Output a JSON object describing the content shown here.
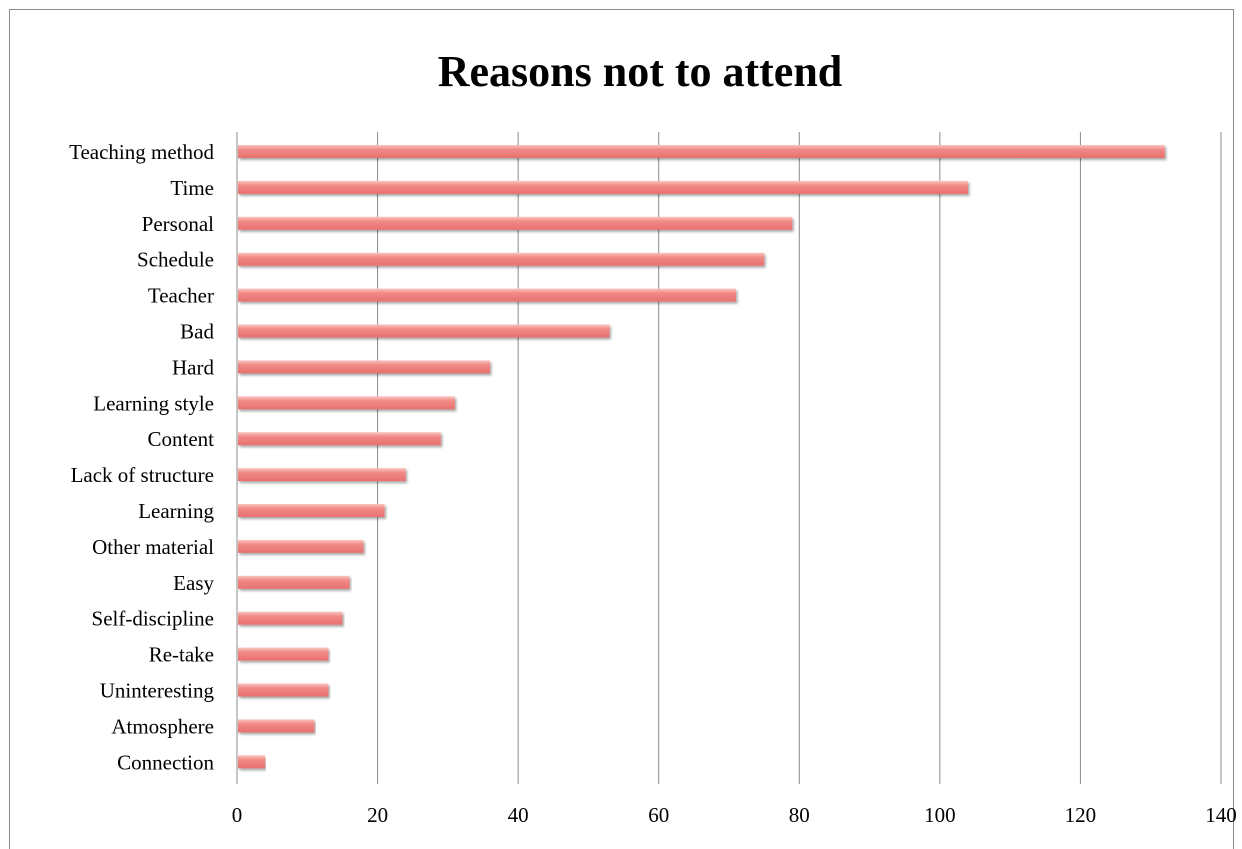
{
  "chart_data": {
    "type": "bar",
    "orientation": "horizontal",
    "title": "Reasons not to attend",
    "xlabel": "",
    "ylabel": "",
    "categories": [
      "Teaching method",
      "Time",
      "Personal",
      "Schedule",
      "Teacher",
      "Bad",
      "Hard",
      "Learning style",
      "Content",
      "Lack of structure",
      "Learning",
      "Other material",
      "Easy",
      "Self-discipline",
      "Re-take",
      "Uninteresting",
      "Atmosphere",
      "Connection"
    ],
    "values": [
      132,
      104,
      79,
      75,
      71,
      53,
      36,
      31,
      29,
      24,
      21,
      18,
      16,
      15,
      13,
      13,
      11,
      4
    ],
    "xlim": [
      0,
      140
    ],
    "xticks": [
      0,
      20,
      40,
      60,
      80,
      100,
      120,
      140
    ],
    "grid": "vertical",
    "legend": "none",
    "bar_color": "#e8706e",
    "bar_highlight": "#fbc4c0"
  }
}
